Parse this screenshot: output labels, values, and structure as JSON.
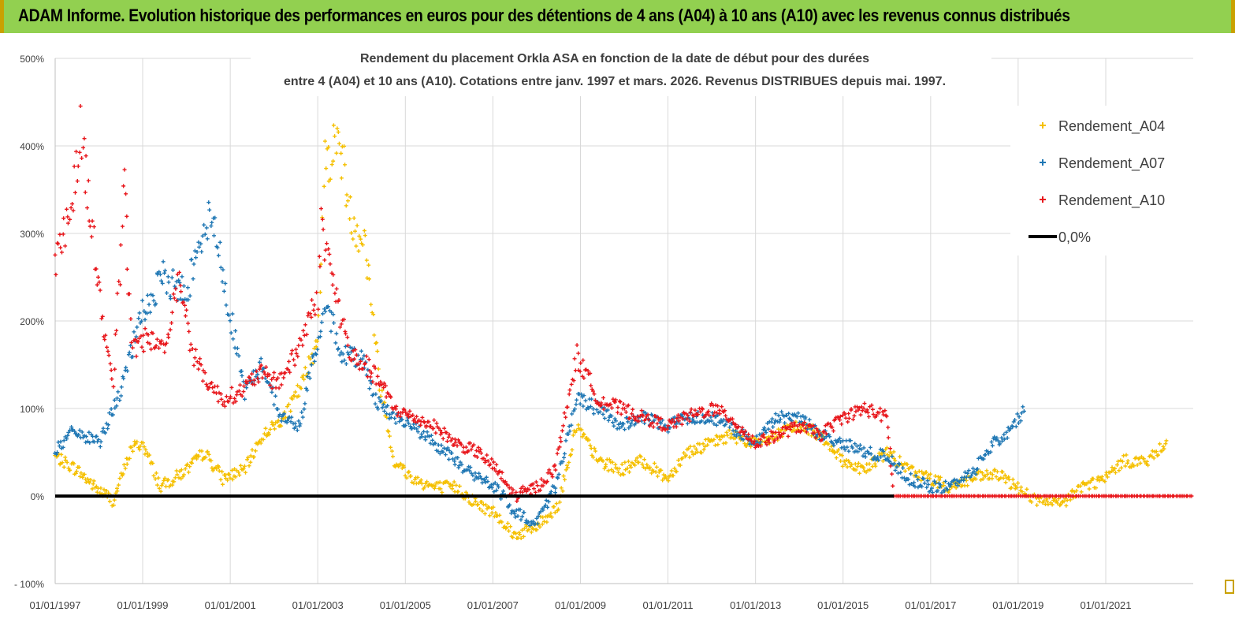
{
  "banner": {
    "title": "ADAM Informe. Evolution historique des performances en euros pour des détentions de 4 ans (A04) à 10 ans (A10) avec les revenus connus distribués",
    "background": "#92D050"
  },
  "chart_data": {
    "type": "scatter",
    "title_line1": "Rendement du placement Orkla ASA en fonction de la date de début pour des durées",
    "title_line2": "entre 4 (A04) et 10 ans (A10).  Cotations entre janv. 1997 et mars. 2026. Revenus DISTRIBUES depuis mai. 1997.",
    "x_axis": {
      "type": "date",
      "min": "1997-01-01",
      "max": "2023-01-01",
      "tick_labels": [
        "01/01/1997",
        "01/01/1999",
        "01/01/2001",
        "01/01/2003",
        "01/01/2005",
        "01/01/2007",
        "01/01/2009",
        "01/01/2011",
        "01/01/2013",
        "01/01/2015",
        "01/01/2017",
        "01/01/2019",
        "01/01/2021"
      ]
    },
    "y_axis": {
      "min": -100,
      "max": 500,
      "step": 100,
      "unit": "%",
      "tick_labels": [
        "- 100%",
        "0%",
        "100%",
        "200%",
        "300%",
        "400%",
        "500%"
      ]
    },
    "grid": true,
    "legend_position": "top-right",
    "series": [
      {
        "name": "Rendement_A04",
        "color": "#F5C000",
        "marker": "+",
        "points": [
          [
            "1997-01-01",
            45
          ],
          [
            "1997-07-01",
            30
          ],
          [
            "1997-12-01",
            10
          ],
          [
            "1998-05-01",
            -5
          ],
          [
            "1998-10-01",
            55
          ],
          [
            "1999-01-01",
            60
          ],
          [
            "1999-06-01",
            10
          ],
          [
            "2000-01-01",
            30
          ],
          [
            "2000-06-01",
            50
          ],
          [
            "2000-11-01",
            20
          ],
          [
            "2001-05-01",
            30
          ],
          [
            "2001-10-01",
            70
          ],
          [
            "2002-04-01",
            90
          ],
          [
            "2002-09-01",
            130
          ],
          [
            "2003-01-01",
            180
          ],
          [
            "2003-03-01",
            380
          ],
          [
            "2003-07-01",
            410
          ],
          [
            "2003-10-01",
            320
          ],
          [
            "2004-02-01",
            290
          ],
          [
            "2004-06-01",
            130
          ],
          [
            "2004-10-01",
            40
          ],
          [
            "2005-03-01",
            20
          ],
          [
            "2005-09-01",
            10
          ],
          [
            "2006-03-01",
            10
          ],
          [
            "2006-09-01",
            -10
          ],
          [
            "2007-02-01",
            -20
          ],
          [
            "2007-07-01",
            -45
          ],
          [
            "2008-01-01",
            -35
          ],
          [
            "2008-07-01",
            -10
          ],
          [
            "2008-12-01",
            80
          ],
          [
            "2009-06-01",
            40
          ],
          [
            "2009-12-01",
            30
          ],
          [
            "2010-06-01",
            40
          ],
          [
            "2011-01-01",
            20
          ],
          [
            "2011-06-01",
            50
          ],
          [
            "2012-01-01",
            60
          ],
          [
            "2012-06-01",
            70
          ],
          [
            "2013-01-01",
            60
          ],
          [
            "2013-07-01",
            70
          ],
          [
            "2014-01-01",
            80
          ],
          [
            "2014-07-01",
            70
          ],
          [
            "2015-01-01",
            40
          ],
          [
            "2015-07-01",
            30
          ],
          [
            "2016-01-01",
            50
          ],
          [
            "2016-07-01",
            30
          ],
          [
            "2017-01-01",
            20
          ],
          [
            "2017-06-01",
            10
          ],
          [
            "2018-01-01",
            20
          ],
          [
            "2018-07-01",
            25
          ],
          [
            "2019-01-01",
            10
          ],
          [
            "2019-06-01",
            -5
          ],
          [
            "2020-01-01",
            -10
          ],
          [
            "2020-06-01",
            10
          ],
          [
            "2021-01-01",
            20
          ],
          [
            "2021-06-01",
            40
          ],
          [
            "2022-01-01",
            40
          ],
          [
            "2022-06-01",
            65
          ]
        ]
      },
      {
        "name": "Rendement_A07",
        "color": "#1F77B4",
        "marker": "+",
        "points": [
          [
            "1997-01-01",
            50
          ],
          [
            "1997-06-01",
            75
          ],
          [
            "1998-01-01",
            60
          ],
          [
            "1998-07-01",
            120
          ],
          [
            "1999-01-01",
            210
          ],
          [
            "1999-07-01",
            250
          ],
          [
            "2000-01-01",
            230
          ],
          [
            "2000-04-01",
            290
          ],
          [
            "2000-08-01",
            320
          ],
          [
            "2000-12-01",
            230
          ],
          [
            "2001-05-01",
            120
          ],
          [
            "2001-10-01",
            150
          ],
          [
            "2002-03-01",
            90
          ],
          [
            "2002-08-01",
            80
          ],
          [
            "2003-01-01",
            180
          ],
          [
            "2003-04-01",
            210
          ],
          [
            "2003-08-01",
            160
          ],
          [
            "2004-01-01",
            160
          ],
          [
            "2004-05-01",
            110
          ],
          [
            "2004-10-01",
            90
          ],
          [
            "2005-03-01",
            80
          ],
          [
            "2005-09-01",
            60
          ],
          [
            "2006-03-01",
            40
          ],
          [
            "2006-09-01",
            20
          ],
          [
            "2007-02-01",
            10
          ],
          [
            "2007-07-01",
            -20
          ],
          [
            "2008-01-01",
            -30
          ],
          [
            "2008-06-01",
            10
          ],
          [
            "2008-12-01",
            110
          ],
          [
            "2009-06-01",
            100
          ],
          [
            "2009-12-01",
            80
          ],
          [
            "2010-06-01",
            90
          ],
          [
            "2011-01-01",
            80
          ],
          [
            "2011-06-01",
            90
          ],
          [
            "2012-01-01",
            90
          ],
          [
            "2012-06-01",
            80
          ],
          [
            "2013-01-01",
            60
          ],
          [
            "2013-07-01",
            90
          ],
          [
            "2014-01-01",
            90
          ],
          [
            "2014-07-01",
            70
          ],
          [
            "2015-01-01",
            60
          ],
          [
            "2015-07-01",
            50
          ],
          [
            "2016-01-01",
            45
          ],
          [
            "2016-07-01",
            20
          ],
          [
            "2017-01-01",
            10
          ],
          [
            "2017-06-01",
            10
          ],
          [
            "2018-01-01",
            30
          ],
          [
            "2018-06-01",
            60
          ],
          [
            "2018-10-01",
            70
          ],
          [
            "2019-03-01",
            100
          ]
        ]
      },
      {
        "name": "Rendement_A10",
        "color": "#E8161B",
        "marker": "+",
        "points": [
          [
            "1997-01-01",
            270
          ],
          [
            "1997-05-01",
            320
          ],
          [
            "1997-08-01",
            420
          ],
          [
            "1997-11-01",
            310
          ],
          [
            "1998-02-01",
            200
          ],
          [
            "1998-05-01",
            130
          ],
          [
            "1998-08-01",
            350
          ],
          [
            "1998-10-01",
            170
          ],
          [
            "1999-02-01",
            180
          ],
          [
            "1999-07-01",
            170
          ],
          [
            "1999-11-01",
            250
          ],
          [
            "2000-03-01",
            160
          ],
          [
            "2000-07-01",
            130
          ],
          [
            "2000-11-01",
            110
          ],
          [
            "2001-04-01",
            120
          ],
          [
            "2001-09-01",
            140
          ],
          [
            "2002-02-01",
            130
          ],
          [
            "2002-07-01",
            160
          ],
          [
            "2003-01-01",
            230
          ],
          [
            "2003-02-01",
            310
          ],
          [
            "2003-06-01",
            230
          ],
          [
            "2003-10-01",
            160
          ],
          [
            "2004-02-01",
            150
          ],
          [
            "2004-06-01",
            130
          ],
          [
            "2004-10-01",
            100
          ],
          [
            "2005-03-01",
            90
          ],
          [
            "2005-09-01",
            80
          ],
          [
            "2006-03-01",
            60
          ],
          [
            "2006-09-01",
            50
          ],
          [
            "2007-02-01",
            30
          ],
          [
            "2007-07-01",
            0
          ],
          [
            "2008-01-01",
            10
          ],
          [
            "2008-06-01",
            30
          ],
          [
            "2008-12-01",
            160
          ],
          [
            "2009-06-01",
            110
          ],
          [
            "2009-12-01",
            100
          ],
          [
            "2010-06-01",
            90
          ],
          [
            "2011-01-01",
            80
          ],
          [
            "2011-06-01",
            90
          ],
          [
            "2012-01-01",
            100
          ],
          [
            "2012-06-01",
            90
          ],
          [
            "2013-01-01",
            60
          ],
          [
            "2013-07-01",
            70
          ],
          [
            "2014-01-01",
            80
          ],
          [
            "2014-07-01",
            70
          ],
          [
            "2015-01-01",
            90
          ],
          [
            "2015-07-01",
            100
          ],
          [
            "2016-01-01",
            90
          ],
          [
            "2016-03-01",
            0
          ],
          [
            "2023-01-01",
            0
          ]
        ]
      }
    ],
    "reference_line": {
      "name": "0,0%",
      "value": 0,
      "color": "#000000"
    }
  }
}
